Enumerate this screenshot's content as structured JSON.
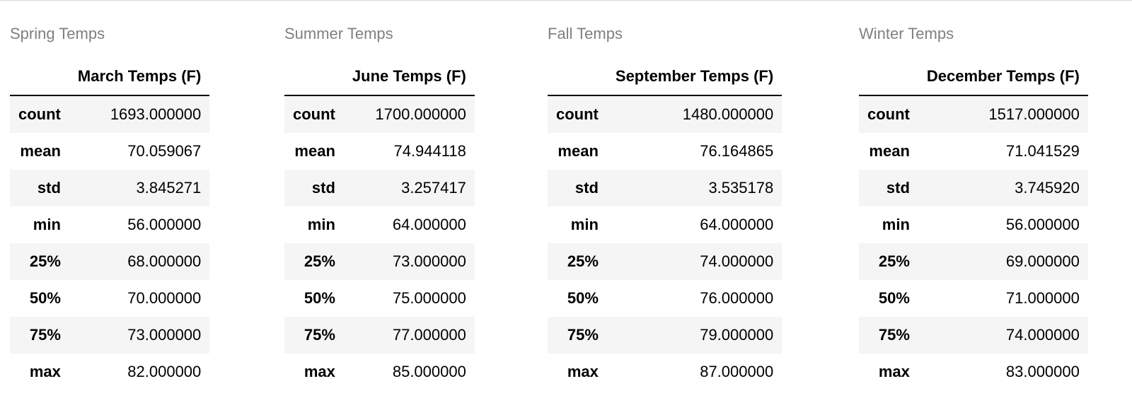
{
  "tables": [
    {
      "caption": "Spring Temps",
      "column_header": "March Temps (F)",
      "rows": [
        {
          "label": "count",
          "value": "1693.000000"
        },
        {
          "label": "mean",
          "value": "70.059067"
        },
        {
          "label": "std",
          "value": "3.845271"
        },
        {
          "label": "min",
          "value": "56.000000"
        },
        {
          "label": "25%",
          "value": "68.000000"
        },
        {
          "label": "50%",
          "value": "70.000000"
        },
        {
          "label": "75%",
          "value": "73.000000"
        },
        {
          "label": "max",
          "value": "82.000000"
        }
      ]
    },
    {
      "caption": "Summer Temps",
      "column_header": "June Temps (F)",
      "rows": [
        {
          "label": "count",
          "value": "1700.000000"
        },
        {
          "label": "mean",
          "value": "74.944118"
        },
        {
          "label": "std",
          "value": "3.257417"
        },
        {
          "label": "min",
          "value": "64.000000"
        },
        {
          "label": "25%",
          "value": "73.000000"
        },
        {
          "label": "50%",
          "value": "75.000000"
        },
        {
          "label": "75%",
          "value": "77.000000"
        },
        {
          "label": "max",
          "value": "85.000000"
        }
      ]
    },
    {
      "caption": "Fall Temps",
      "column_header": "September Temps (F)",
      "rows": [
        {
          "label": "count",
          "value": "1480.000000"
        },
        {
          "label": "mean",
          "value": "76.164865"
        },
        {
          "label": "std",
          "value": "3.535178"
        },
        {
          "label": "min",
          "value": "64.000000"
        },
        {
          "label": "25%",
          "value": "74.000000"
        },
        {
          "label": "50%",
          "value": "76.000000"
        },
        {
          "label": "75%",
          "value": "79.000000"
        },
        {
          "label": "max",
          "value": "87.000000"
        }
      ]
    },
    {
      "caption": "Winter Temps",
      "column_header": "December Temps (F)",
      "rows": [
        {
          "label": "count",
          "value": "1517.000000"
        },
        {
          "label": "mean",
          "value": "71.041529"
        },
        {
          "label": "std",
          "value": "3.745920"
        },
        {
          "label": "min",
          "value": "56.000000"
        },
        {
          "label": "25%",
          "value": "69.000000"
        },
        {
          "label": "50%",
          "value": "71.000000"
        },
        {
          "label": "75%",
          "value": "74.000000"
        },
        {
          "label": "max",
          "value": "83.000000"
        }
      ]
    }
  ]
}
